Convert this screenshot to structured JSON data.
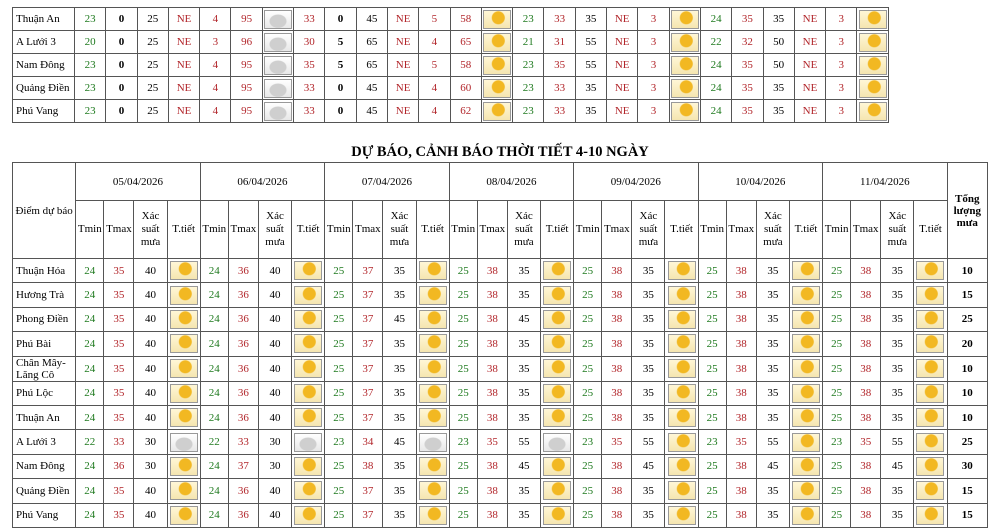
{
  "top_table": {
    "rows": [
      {
        "name": "Thuận An",
        "cells": [
          23,
          0,
          25,
          "NE",
          4,
          95,
          33,
          0,
          45,
          "NE",
          5,
          58,
          23,
          33,
          35,
          "NE",
          3,
          24,
          35,
          35,
          "NE",
          3
        ]
      },
      {
        "name": "A Lưới 3",
        "cells": [
          20,
          0,
          25,
          "NE",
          3,
          96,
          30,
          5,
          65,
          "NE",
          4,
          65,
          21,
          31,
          55,
          "NE",
          3,
          22,
          32,
          50,
          "NE",
          3
        ]
      },
      {
        "name": "Nam Đông",
        "cells": [
          23,
          0,
          25,
          "NE",
          4,
          95,
          35,
          5,
          65,
          "NE",
          5,
          58,
          23,
          35,
          55,
          "NE",
          3,
          24,
          35,
          50,
          "NE",
          3
        ]
      },
      {
        "name": "Quảng Điền",
        "cells": [
          23,
          0,
          25,
          "NE",
          4,
          95,
          33,
          0,
          45,
          "NE",
          4,
          60,
          23,
          33,
          35,
          "NE",
          3,
          24,
          35,
          35,
          "NE",
          3
        ]
      },
      {
        "name": "Phú Vang",
        "cells": [
          23,
          0,
          25,
          "NE",
          4,
          95,
          33,
          0,
          45,
          "NE",
          4,
          62,
          23,
          33,
          35,
          "NE",
          3,
          24,
          35,
          35,
          "NE",
          3
        ]
      }
    ]
  },
  "forecast_table": {
    "title": "DỰ BÁO, CẢNH BÁO THỜI TIẾT 4-10 NGÀY",
    "header": {
      "location": "Điểm dự báo",
      "dates": [
        "05/04/2026",
        "06/04/2026",
        "07/04/2026",
        "08/04/2026",
        "09/04/2026",
        "10/04/2026",
        "11/04/2026"
      ],
      "total": "Tổng lượng mưa",
      "sub": [
        "Tmin",
        "Tmax",
        "Xác suất mưa",
        "T.tiết"
      ]
    },
    "rows": [
      {
        "name": "Thuận Hóa",
        "days": [
          [
            24,
            35,
            40
          ],
          [
            24,
            36,
            40
          ],
          [
            25,
            37,
            35
          ],
          [
            25,
            38,
            35
          ],
          [
            25,
            38,
            35
          ],
          [
            25,
            38,
            35
          ],
          [
            25,
            38,
            35
          ]
        ],
        "total": 10
      },
      {
        "name": "Hương Trà",
        "days": [
          [
            24,
            35,
            40
          ],
          [
            24,
            36,
            40
          ],
          [
            25,
            37,
            35
          ],
          [
            25,
            38,
            35
          ],
          [
            25,
            38,
            35
          ],
          [
            25,
            38,
            35
          ],
          [
            25,
            38,
            35
          ]
        ],
        "total": 15
      },
      {
        "name": "Phong Điền",
        "days": [
          [
            24,
            35,
            40
          ],
          [
            24,
            36,
            40
          ],
          [
            25,
            37,
            45
          ],
          [
            25,
            38,
            45
          ],
          [
            25,
            38,
            35
          ],
          [
            25,
            38,
            35
          ],
          [
            25,
            38,
            35
          ]
        ],
        "total": 25
      },
      {
        "name": "Phú Bài",
        "days": [
          [
            24,
            35,
            40
          ],
          [
            24,
            36,
            40
          ],
          [
            25,
            37,
            35
          ],
          [
            25,
            38,
            35
          ],
          [
            25,
            38,
            35
          ],
          [
            25,
            38,
            35
          ],
          [
            25,
            38,
            35
          ]
        ],
        "total": 20
      },
      {
        "name": "Chân Mây-Lăng Cô",
        "days": [
          [
            24,
            35,
            40
          ],
          [
            24,
            36,
            40
          ],
          [
            25,
            37,
            35
          ],
          [
            25,
            38,
            35
          ],
          [
            25,
            38,
            35
          ],
          [
            25,
            38,
            35
          ],
          [
            25,
            38,
            35
          ]
        ],
        "total": 10
      },
      {
        "name": "Phú Lộc",
        "days": [
          [
            24,
            35,
            40
          ],
          [
            24,
            36,
            40
          ],
          [
            25,
            37,
            35
          ],
          [
            25,
            38,
            35
          ],
          [
            25,
            38,
            35
          ],
          [
            25,
            38,
            35
          ],
          [
            25,
            38,
            35
          ]
        ],
        "total": 10
      },
      {
        "name": "Thuận An",
        "days": [
          [
            24,
            35,
            40
          ],
          [
            24,
            36,
            40
          ],
          [
            25,
            37,
            35
          ],
          [
            25,
            38,
            35
          ],
          [
            25,
            38,
            35
          ],
          [
            25,
            38,
            35
          ],
          [
            25,
            38,
            35
          ]
        ],
        "total": 10
      },
      {
        "name": "A Lưới 3",
        "days": [
          [
            22,
            33,
            30
          ],
          [
            22,
            33,
            30
          ],
          [
            23,
            34,
            45
          ],
          [
            23,
            35,
            55
          ],
          [
            23,
            35,
            55
          ],
          [
            23,
            35,
            55
          ],
          [
            23,
            35,
            55
          ]
        ],
        "total": 25
      },
      {
        "name": "Nam Đông",
        "days": [
          [
            24,
            36,
            30
          ],
          [
            24,
            37,
            30
          ],
          [
            25,
            38,
            35
          ],
          [
            25,
            38,
            45
          ],
          [
            25,
            38,
            45
          ],
          [
            25,
            38,
            45
          ],
          [
            25,
            38,
            45
          ]
        ],
        "total": 30
      },
      {
        "name": "Quảng Điền",
        "days": [
          [
            24,
            35,
            40
          ],
          [
            24,
            36,
            40
          ],
          [
            25,
            37,
            35
          ],
          [
            25,
            38,
            35
          ],
          [
            25,
            38,
            35
          ],
          [
            25,
            38,
            35
          ],
          [
            25,
            38,
            35
          ]
        ],
        "total": 15
      },
      {
        "name": "Phú Vang",
        "days": [
          [
            24,
            35,
            40
          ],
          [
            24,
            36,
            40
          ],
          [
            25,
            37,
            35
          ],
          [
            25,
            38,
            35
          ],
          [
            25,
            38,
            35
          ],
          [
            25,
            38,
            35
          ],
          [
            25,
            38,
            35
          ]
        ],
        "total": 15
      }
    ]
  }
}
